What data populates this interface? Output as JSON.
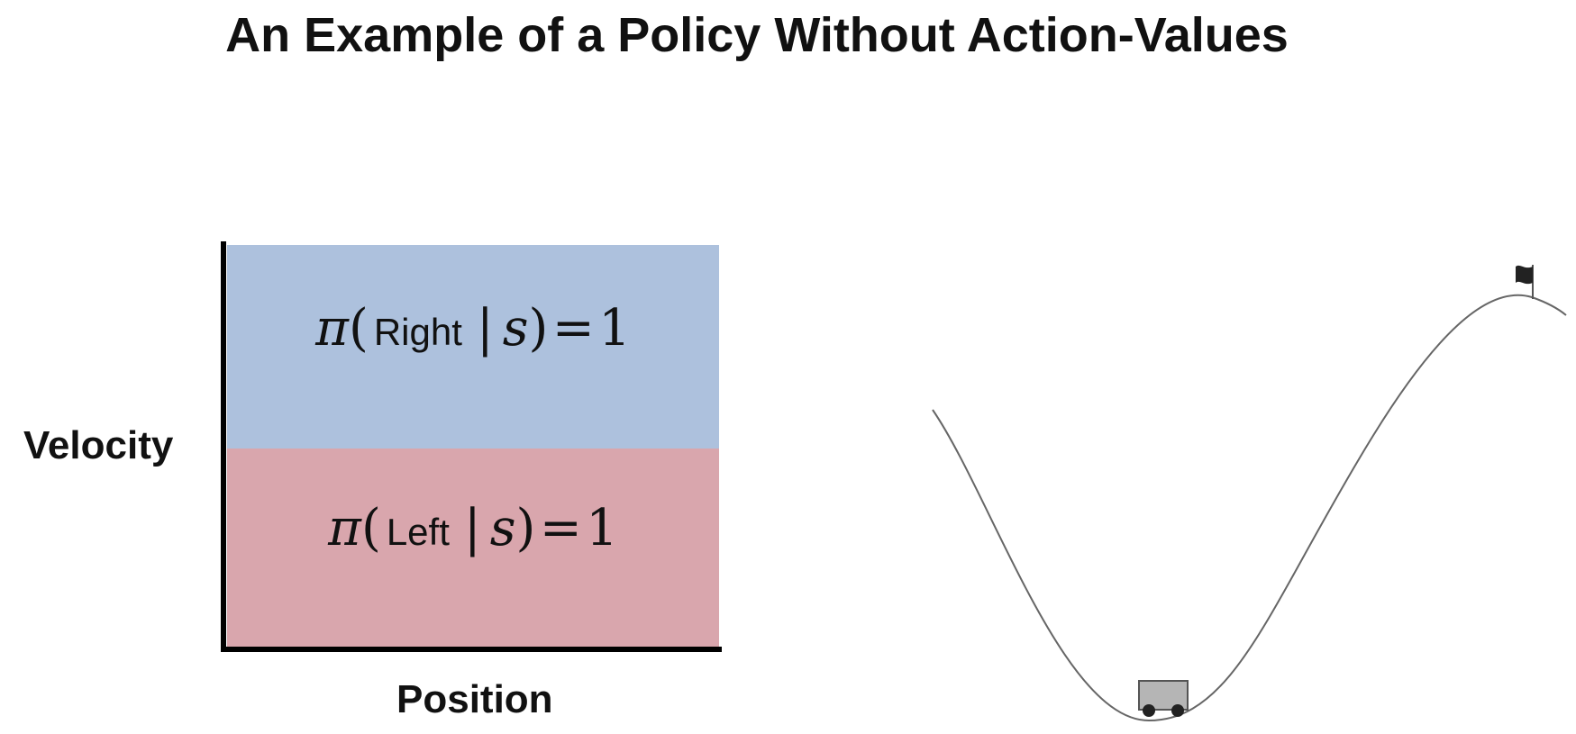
{
  "title": "An Example of a Policy Without Action-Values",
  "policy_plot": {
    "ylabel": "Velocity",
    "xlabel": "Position",
    "upper_region": {
      "color": "#adc1dd",
      "pi": "π",
      "open_paren": "(",
      "action": "Right",
      "bar": "|",
      "state": "s",
      "close_paren": ")",
      "equals": "=",
      "value": "1"
    },
    "lower_region": {
      "color": "#d9a6ad",
      "pi": "π",
      "open_paren": "(",
      "action": "Left",
      "bar": "|",
      "state": "s",
      "close_paren": ")",
      "equals": "=",
      "value": "1"
    }
  },
  "scene": {
    "icons": [
      "valley-curve",
      "car-icon",
      "flag-icon"
    ]
  }
}
